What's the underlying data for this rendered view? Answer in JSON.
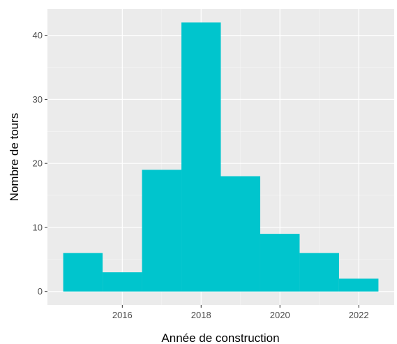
{
  "chart_data": {
    "type": "bar",
    "subtype": "histogram",
    "title": "",
    "xlabel": "Année de construction",
    "ylabel": "Nombre de tours",
    "bins": [
      {
        "start": 2014.5,
        "end": 2015.5,
        "count": 6
      },
      {
        "start": 2015.5,
        "end": 2016.5,
        "count": 3
      },
      {
        "start": 2016.5,
        "end": 2017.5,
        "count": 19
      },
      {
        "start": 2017.5,
        "end": 2018.5,
        "count": 42
      },
      {
        "start": 2018.5,
        "end": 2019.5,
        "count": 18
      },
      {
        "start": 2019.5,
        "end": 2020.5,
        "count": 9
      },
      {
        "start": 2020.5,
        "end": 2021.5,
        "count": 6
      },
      {
        "start": 2021.5,
        "end": 2022.5,
        "count": 2
      }
    ],
    "xlim": [
      2014.1,
      2022.9
    ],
    "ylim": [
      -2.1,
      44.1
    ],
    "x_ticks": [
      2016,
      2018,
      2020,
      2022
    ],
    "x_tick_labels": [
      "2016",
      "2018",
      "2020",
      "2022"
    ],
    "y_ticks": [
      0,
      10,
      20,
      30,
      40
    ],
    "y_tick_labels": [
      "0",
      "10",
      "20",
      "30",
      "40"
    ],
    "grid": true,
    "legend": "none",
    "colors": {
      "bar_fill": "#00c5cd",
      "panel_background": "#ebebeb",
      "grid_major": "#ffffff",
      "grid_minor": "#f5f5f5"
    }
  }
}
